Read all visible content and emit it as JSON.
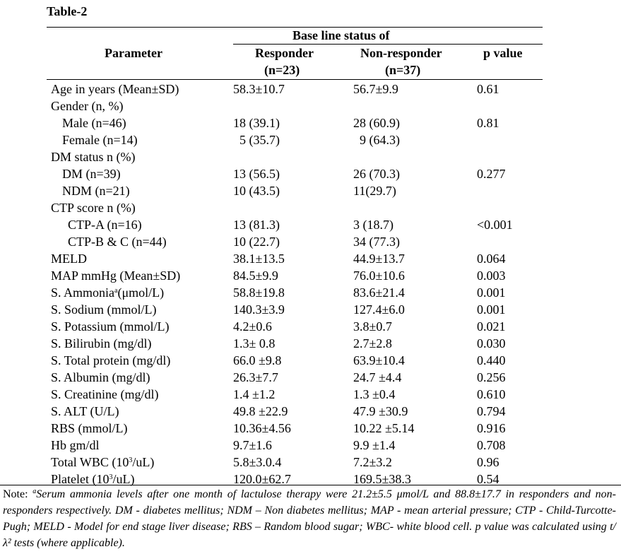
{
  "title": "Table-2",
  "header": {
    "group": "Base line status of",
    "parameter": "Parameter",
    "responder": "Responder",
    "responder_n": "(n=23)",
    "nonresponder": "Non-responder",
    "nonresponder_n": "(n=37)",
    "pvalue": "p value"
  },
  "rows": [
    {
      "param": "Age in years (Mean±SD)",
      "resp": "58.3±10.7",
      "non": "56.7±9.9",
      "p": "0.61"
    },
    {
      "param": "Gender (n, %)",
      "resp": "",
      "non": "",
      "p": ""
    },
    {
      "param": "Male (n=46)",
      "resp": "18 (39.1)",
      "non": "28 (60.9)",
      "p": "0.81"
    },
    {
      "param": "Female (n=14)",
      "resp": "  5 (35.7)",
      "non": "  9 (64.3)",
      "p": ""
    },
    {
      "param": "DM status n (%)",
      "resp": "",
      "non": "",
      "p": ""
    },
    {
      "param": "DM (n=39)",
      "resp": "13 (56.5)",
      "non": "26 (70.3)",
      "p": "0.277"
    },
    {
      "param": "NDM (n=21)",
      "resp": "10 (43.5)",
      "non": "11(29.7)",
      "p": ""
    },
    {
      "param": "CTP score n (%)",
      "resp": "",
      "non": "",
      "p": ""
    },
    {
      "param": "CTP-A (n=16)",
      "resp": "13 (81.3)",
      "non": "3 (18.7)",
      "p": "<0.001"
    },
    {
      "param": "CTP-B & C (n=44)",
      "resp": "10 (22.7)",
      "non": "34 (77.3)",
      "p": ""
    },
    {
      "param": "MELD",
      "resp": "38.1±13.5",
      "non": "44.9±13.7",
      "p": "0.064"
    },
    {
      "param": "MAP mmHg (Mean±SD)",
      "resp": "84.5±9.9",
      "non": "76.0±10.6",
      "p": "0.003"
    },
    {
      "param": "S. Ammonia",
      "param_sup": "a",
      "param_tail": "(μmol/L)",
      "resp": "58.8±19.8",
      "non": "83.6±21.4",
      "p": "0.001"
    },
    {
      "param": "S. Sodium (mmol/L)",
      "resp": "140.3±3.9",
      "non": "127.4±6.0",
      "p": "0.001"
    },
    {
      "param": "S. Potassium (mmol/L)",
      "resp": "4.2±0.6",
      "non": "3.8±0.7",
      "p": "0.021"
    },
    {
      "param": "S. Bilirubin (mg/dl)",
      "resp": "1.3± 0.8",
      "non": "2.7±2.8",
      "p": "0.030"
    },
    {
      "param": "S. Total protein (mg/dl)",
      "resp": "66.0 ±9.8",
      "non": "63.9±10.4",
      "p": "0.440"
    },
    {
      "param": "S. Albumin (mg/dl)",
      "resp": "26.3±7.7",
      "non": "24.7 ±4.4",
      "p": "0.256"
    },
    {
      "param": "S. Creatinine (mg/dl)",
      "resp": "1.4 ±1.2",
      "non": "1.3 ±0.4",
      "p": "0.610"
    },
    {
      "param": "S. ALT (U/L)",
      "resp": "49.8 ±22.9",
      "non": "47.9 ±30.9",
      "p": "0.794"
    },
    {
      "param": "RBS (mmol/L)",
      "resp": "10.36±4.56",
      "non": "10.22 ±5.14",
      "p": "0.916"
    },
    {
      "param": "Hb gm/dl",
      "resp": "9.7±1.6",
      "non": "9.9 ±1.4",
      "p": "0.708"
    },
    {
      "param": "Total WBC (10",
      "param_sup": "3",
      "param_tail": "/uL)",
      "resp": "5.8±3.0.4",
      "non": "7.2±3.2",
      "p": "0.96"
    },
    {
      "param": "Platelet (10",
      "param_sup": "3",
      "param_tail": "/uL)",
      "resp": "120.0±62.7",
      "non": "169.5±38.3",
      "p": "0.54"
    }
  ],
  "note": {
    "label": "Note: ",
    "sup": "a",
    "text": "Serum ammonia levels after one month of lactulose therapy were 21.2±5.5 μmol/L and 88.8±17.7 in responders and non-responders respectively. DM - diabetes mellitus; NDM – Non diabetes mellitus; MAP - mean arterial pressure; CTP - Child-Turcotte-Pugh; MELD - Model for end stage liver disease; RBS – Random blood sugar; WBC- white blood cell. p value was calculated using t/λ² tests (where applicable)."
  }
}
